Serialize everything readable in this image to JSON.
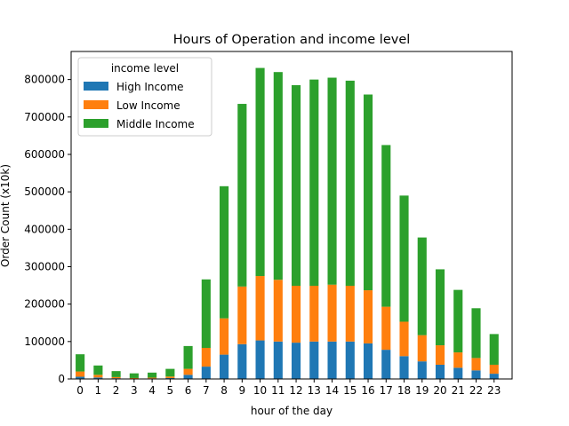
{
  "chart_data": {
    "type": "bar",
    "stacked": true,
    "title": "Hours of Operation and income level",
    "xlabel": "hour of the day",
    "ylabel": "Order Count (x10k)",
    "ylim": [
      0,
      875000
    ],
    "yticks": [
      0,
      100000,
      200000,
      300000,
      400000,
      500000,
      600000,
      700000,
      800000
    ],
    "categories": [
      "0",
      "1",
      "2",
      "3",
      "4",
      "5",
      "6",
      "7",
      "8",
      "9",
      "10",
      "11",
      "12",
      "13",
      "14",
      "15",
      "16",
      "17",
      "18",
      "19",
      "20",
      "21",
      "22",
      "23"
    ],
    "legend": {
      "title": "income level",
      "placement": "top-left"
    },
    "series": [
      {
        "name": "High Income",
        "color": "#1f77b4",
        "values": [
          6000,
          4000,
          2000,
          1000,
          1500,
          2500,
          11000,
          33000,
          65000,
          93000,
          103000,
          100000,
          97000,
          100000,
          100000,
          100000,
          95000,
          78000,
          61000,
          47000,
          38000,
          30000,
          23000,
          14000
        ]
      },
      {
        "name": "Low Income",
        "color": "#ff7f0e",
        "values": [
          14000,
          7000,
          3000,
          1500,
          2000,
          4000,
          16000,
          50000,
          97000,
          154000,
          172000,
          165000,
          152000,
          149000,
          152000,
          149000,
          142000,
          115000,
          92000,
          70000,
          52000,
          41000,
          33000,
          24000
        ]
      },
      {
        "name": "Middle Income",
        "color": "#2ca02c",
        "values": [
          46000,
          25000,
          16000,
          12500,
          13500,
          20500,
          61000,
          183000,
          353000,
          488000,
          556000,
          555000,
          536000,
          551000,
          553000,
          548000,
          523000,
          432000,
          337000,
          261000,
          203000,
          167000,
          133000,
          82000
        ]
      }
    ],
    "grid": false
  }
}
